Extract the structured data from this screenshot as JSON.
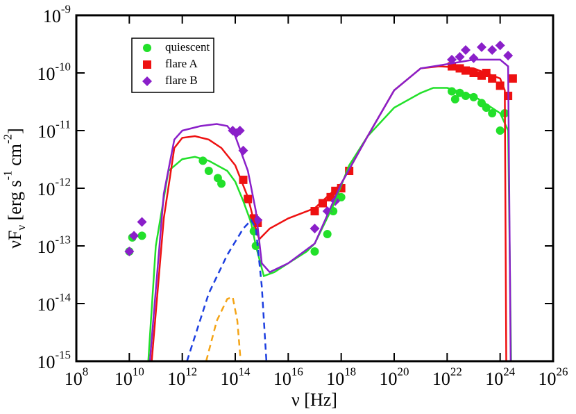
{
  "chart_data": {
    "type": "scatter",
    "xlabel": "ν [Hz]",
    "ylabel": "νF_ν [erg s^-1 cm^-2]",
    "xscale": "log",
    "yscale": "log",
    "xlim": [
      100000000.0,
      1e+26
    ],
    "ylim": [
      1e-15,
      1e-09
    ],
    "xticks": [
      {
        "value": 100000000.0,
        "label": "10^8"
      },
      {
        "value": 10000000000.0,
        "label": "10^10"
      },
      {
        "value": 1000000000000.0,
        "label": "10^12"
      },
      {
        "value": 100000000000000.0,
        "label": "10^14"
      },
      {
        "value": 1e+16,
        "label": "10^16"
      },
      {
        "value": 1e+18,
        "label": "10^18"
      },
      {
        "value": 1e+20,
        "label": "10^20"
      },
      {
        "value": 1e+22,
        "label": "10^22"
      },
      {
        "value": 1e+24,
        "label": "10^24"
      },
      {
        "value": 1e+26,
        "label": "10^26"
      }
    ],
    "yticks": [
      {
        "value": 1e-15,
        "label": "10^-15"
      },
      {
        "value": 1e-14,
        "label": "10^-14"
      },
      {
        "value": 1e-13,
        "label": "10^-13"
      },
      {
        "value": 1e-12,
        "label": "10^-12"
      },
      {
        "value": 1e-11,
        "label": "10^-11"
      },
      {
        "value": 1e-10,
        "label": "10^-10"
      },
      {
        "value": 1e-09,
        "label": "10^-9"
      }
    ],
    "legend": "upper left",
    "series": [
      {
        "name": "quiescent",
        "color": "#22e02a",
        "marker": "circle",
        "x": [
          10000000000.0,
          13000000000.0,
          30000000000.0,
          6000000000000.0,
          10000000000000.0,
          22000000000000.0,
          30000000000000.0,
          500000000000000.0,
          600000000000000.0,
          1e+17,
          3e+17,
          5e+17,
          1e+18,
          1.5e+22,
          2e+22,
          3e+22,
          5e+22,
          1e+23,
          2e+23,
          3e+23,
          5e+23,
          1e+24,
          1.5e+24
        ],
        "values": [
          8e-14,
          1.4e-13,
          1.5e-13,
          3e-12,
          2e-12,
          1.5e-12,
          1.2e-12,
          1.8e-13,
          1e-13,
          8e-14,
          1.6e-13,
          4e-13,
          7e-13,
          4.8e-11,
          3.5e-11,
          4.5e-11,
          4e-11,
          3.8e-11,
          3e-11,
          2.5e-11,
          2e-11,
          1e-11,
          2e-11
        ]
      },
      {
        "name": "flare A",
        "color": "#ee1111",
        "marker": "square",
        "x": [
          200000000000000.0,
          300000000000000.0,
          500000000000000.0,
          700000000000000.0,
          1e+17,
          2e+17,
          4e+17,
          6e+17,
          1e+18,
          2e+18,
          1.5e+22,
          3e+22,
          5e+22,
          1e+23,
          2e+23,
          3e+23,
          5e+23,
          1e+24,
          2e+24,
          3e+24
        ],
        "values": [
          1.4e-12,
          6.5e-13,
          3e-13,
          2.5e-13,
          4e-13,
          5.5e-13,
          7e-13,
          9e-13,
          1e-12,
          2e-12,
          1.3e-10,
          1.2e-10,
          1.1e-10,
          1e-10,
          9e-11,
          1e-10,
          8e-11,
          6e-11,
          4e-11,
          8e-11
        ]
      },
      {
        "name": "flare B",
        "color": "#8a1fc9",
        "marker": "diamond",
        "x": [
          10000000000.0,
          15000000000.0,
          30000000000.0,
          80000000000000.0,
          110000000000000.0,
          150000000000000.0,
          200000000000000.0,
          700000000000000.0,
          1e+17,
          3e+17,
          6e+17,
          1.5e+22,
          3e+22,
          5e+22,
          1e+23,
          2e+23,
          5e+23,
          1e+24,
          2e+24
        ],
        "values": [
          8e-14,
          1.5e-13,
          2.6e-13,
          1e-11,
          9e-12,
          1e-11,
          4.5e-12,
          2.8e-13,
          2e-13,
          4e-13,
          6e-13,
          1.7e-10,
          1.9e-10,
          2.5e-10,
          1.8e-10,
          2.8e-10,
          2.5e-10,
          3e-10,
          2e-10
        ]
      },
      {
        "color": "#22e02a",
        "style": "solid",
        "x": [
          52000000000.0,
          100000000000.0,
          300000000000.0,
          1000000000000.0,
          3000000000000.0,
          10000000000000.0,
          50000000000000.0,
          100000000000000.0,
          200000000000000.0,
          400000000000000.0,
          600000000000000.0,
          1200000000000000.0,
          3000000000000000.0,
          1e+16,
          5e+16,
          1e+17,
          5e+17,
          2e+18,
          1e+19,
          1e+20,
          1e+21,
          3e+21,
          1e+22,
          1e+23,
          1e+24,
          2e+24,
          2.6e+24
        ],
        "values": [
          1e-15,
          1e-13,
          2e-12,
          3.2e-12,
          3.5e-12,
          3e-12,
          2e-12,
          1.3e-12,
          6e-13,
          2.5e-13,
          1e-13,
          3e-14,
          3.5e-14,
          5e-14,
          8e-14,
          1.1e-13,
          5e-13,
          2.5e-12,
          8e-12,
          2.5e-11,
          4.5e-11,
          5.5e-11,
          5.5e-11,
          4e-11,
          2e-11,
          1e-11,
          1e-15
        ]
      },
      {
        "color": "#ee1111",
        "style": "solid",
        "x": [
          70000000000.0,
          200000000000.0,
          500000000000.0,
          1000000000000.0,
          3000000000000.0,
          10000000000000.0,
          30000000000000.0,
          100000000000000.0,
          300000000000000.0,
          600000000000000.0,
          800000000000000.0,
          2000000000000000.0,
          1e+16,
          1e+17,
          1e+18,
          1e+19,
          1e+20,
          1e+21,
          5e+21,
          1e+23,
          1e+24,
          1.5e+24,
          1.7e+24
        ],
        "values": [
          1e-15,
          3e-13,
          5e-12,
          7.5e-12,
          8e-12,
          7e-12,
          5e-12,
          2.5e-12,
          7e-13,
          2e-13,
          1.3e-13,
          2e-13,
          3e-13,
          4.5e-13,
          1.2e-12,
          8e-12,
          5e-11,
          1.2e-10,
          1.3e-10,
          1.2e-10,
          8e-11,
          5e-11,
          1e-15
        ]
      },
      {
        "color": "#8a1fc9",
        "style": "solid",
        "x": [
          60000000000.0,
          200000000000.0,
          500000000000.0,
          1000000000000.0,
          5000000000000.0,
          20000000000000.0,
          50000000000000.0,
          100000000000000.0,
          300000000000000.0,
          600000000000000.0,
          1000000000000000.0,
          2000000000000000.0,
          1e+16,
          1e+17,
          1e+18,
          1e+19,
          1e+20,
          1e+21,
          5e+21,
          1e+23,
          1e+24,
          2e+24,
          2.5e+24
        ],
        "values": [
          1e-15,
          8e-13,
          7e-12,
          1e-11,
          1.2e-11,
          1.3e-11,
          1.2e-11,
          8e-12,
          2e-12,
          4e-13,
          5e-14,
          3.5e-14,
          5e-14,
          1.1e-13,
          1.2e-12,
          8e-12,
          5e-11,
          1.2e-10,
          1.35e-10,
          1.7e-10,
          1.7e-10,
          1.3e-10,
          1e-15
        ]
      },
      {
        "color": "#1d3fe0",
        "style": "dashed",
        "x": [
          1500000000000.0,
          10000000000000.0,
          50000000000000.0,
          200000000000000.0,
          400000000000000.0,
          600000000000000.0,
          1000000000000000.0,
          1500000000000000.0
        ],
        "values": [
          1e-15,
          1.5e-14,
          7e-14,
          2e-13,
          2.8e-13,
          2e-13,
          2e-14,
          1e-15
        ]
      },
      {
        "color": "#f4a416",
        "style": "dashed",
        "x": [
          8000000000000.0,
          20000000000000.0,
          50000000000000.0,
          80000000000000.0,
          120000000000000.0,
          160000000000000.0
        ],
        "values": [
          1e-15,
          5e-15,
          1.2e-14,
          1.3e-14,
          5e-15,
          1e-15
        ]
      }
    ]
  }
}
